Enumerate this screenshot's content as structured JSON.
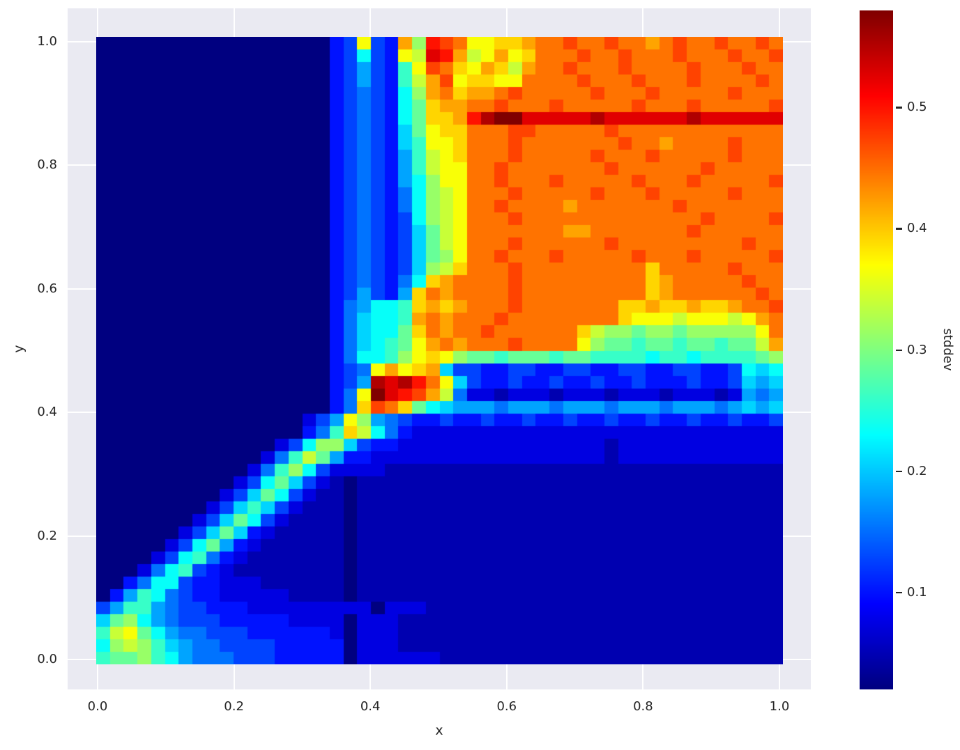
{
  "figure": {
    "background": "#ffffff",
    "axes_background": "#eaeaf2",
    "grid_color": "#ffffff",
    "text_color": "#262626"
  },
  "chart_data": {
    "type": "heatmap",
    "title": "",
    "xlabel": "x",
    "ylabel": "y",
    "x_ticks": [
      0.0,
      0.2,
      0.4,
      0.6,
      0.8,
      1.0
    ],
    "x_tick_labels": [
      "0.0",
      "0.2",
      "0.4",
      "0.6",
      "0.8",
      "1.0"
    ],
    "y_ticks": [
      0.0,
      0.2,
      0.4,
      0.6,
      0.8,
      1.0
    ],
    "y_tick_labels": [
      "0.0",
      "0.2",
      "0.4",
      "0.6",
      "0.8",
      "1.0"
    ],
    "grid_on": true,
    "colormap": "jet",
    "colorbar": {
      "label": "stddev",
      "vmin": 0.02,
      "vmax": 0.58,
      "ticks": [
        0.1,
        0.2,
        0.3,
        0.4,
        0.5
      ],
      "tick_labels": [
        "0.1",
        "0.2",
        "0.3",
        "0.4",
        "0.5"
      ]
    },
    "grid": {
      "nx": 50,
      "ny": 50,
      "x_range": [
        0.0,
        1.0
      ],
      "y_range": [
        0.0,
        1.0
      ],
      "value_scale": {
        "chars": "0123456789abcdefghijkl",
        "stddev_levels": [
          0.02,
          0.047,
          0.073,
          0.1,
          0.127,
          0.153,
          0.18,
          0.207,
          0.233,
          0.26,
          0.287,
          0.313,
          0.34,
          0.367,
          0.393,
          0.42,
          0.447,
          0.473,
          0.5,
          0.527,
          0.553,
          0.58
        ]
      },
      "rows_top_to_bottom": [
        "0000000000000000034d43fbihgddeefgghgghggfghgghgghg",
        "0000000000000000034843dcjifcdfdeggghgghggghggghggh",
        "00000000000000000346439dhgedfecfgghggghgggghggghgg",
        "00000000000000000346439cfhdeeddgggghggghggghgggghg",
        "00000000000000000345438bfgeffghggggghggghggggghggg",
        "00000000000000000345438aeffgghggghggggghggghgggggh",
        "00000000000000000345438aeefiklljjjjjkjjjjjjkjjjjjj",
        "00000000000000000345437adeeggghhggggghgggggggggggg",
        "000000000000000003454379ddeggghggggggghggfgggghggg",
        "000000000000000003454369cdeggghggggghggghggggghggg",
        "000000000000000003454369cddgghggggggghgggggghggggg",
        "000000000000000003454368bddgghggghggggghggghgggggh",
        "000000000000000003454358bcdggghggggghggghggggghggg",
        "000000000000000003454358bcdgghggggfggggggghggggggg",
        "000000000000000003454348bcdggghggggggggggggghggggh",
        "000000000000000003454347acdgggggggffggggggghgggggg",
        "000000000000000003454347acdggghgggggghggggggggghgg",
        "000000000000000003454347abdgghggghggggghggghgggggh",
        "000000000000000003454347bceggghgggggggggeggggghggg",
        "000000000000000003454358efgggghgggggggggefggggghgg",
        "00000000000000000346436egfgggghgggggggggefgggggghg",
        "00000000000000000356889efefggghgggggggeefeefeefggh",
        "00000000000000000357889fgfggghggggggggedddcdddcdfg",
        "0000000000000000035788aegfgghggggggecbbabbabbbbbdg",
        "0000000000000000035789adfgfggghggggdbaa9aa9aa9aacf",
        "0000000000000000035889bdedbaa9aaa9aa999989989999ab",
        "00000000000000000345dfdef7443344334433443344334878",
        "00000000000000000346kjkigd743343343343343334334767",
        "0000000000000000035dljihfc522122212221222122212656",
        "0000000000000000035ehgea87666566656665666566656767",
        "000000000000000246db654334334334334334334334334334",
        "000000000000000359ec853222222222222222222222222222",
        "0000000000000248bb74332222222222222221222222222222",
        "000000000000259ca633222222222222222221222222222222",
        "00000000000259b84222211111111111111111111111111111",
        "0000000000248a742101111111111111111111111111111111",
        "000000000247a8421101111111111111111111111111111111",
        "00000000247974211101111111111111111111111111111111",
        "0000000247a84211110111111111111111111111111111111 ",
        "000000247a7321111101111111111111111111111111111111",
        "00000248a63211111101111111111111111111111111111111",
        "0000248953211111110111111111111111111111111111111 ",
        "000258943211111111011111111111111111111111111111 1",
        "003588433222111111011111111111111111111111111111 1",
        "036985433222221111011111111111111111111111111111 1",
        "4699654433322222222202221111111111111111111111111 ",
        "7ab86544433333222202221111111111111111111111111111",
        "9cda8655444333333202221111111111111111111111111111",
        "8bcb9765544443333302221111111111111111111111111111",
        "9aab9865554443333302222221111111111111111111111111"
      ]
    }
  }
}
